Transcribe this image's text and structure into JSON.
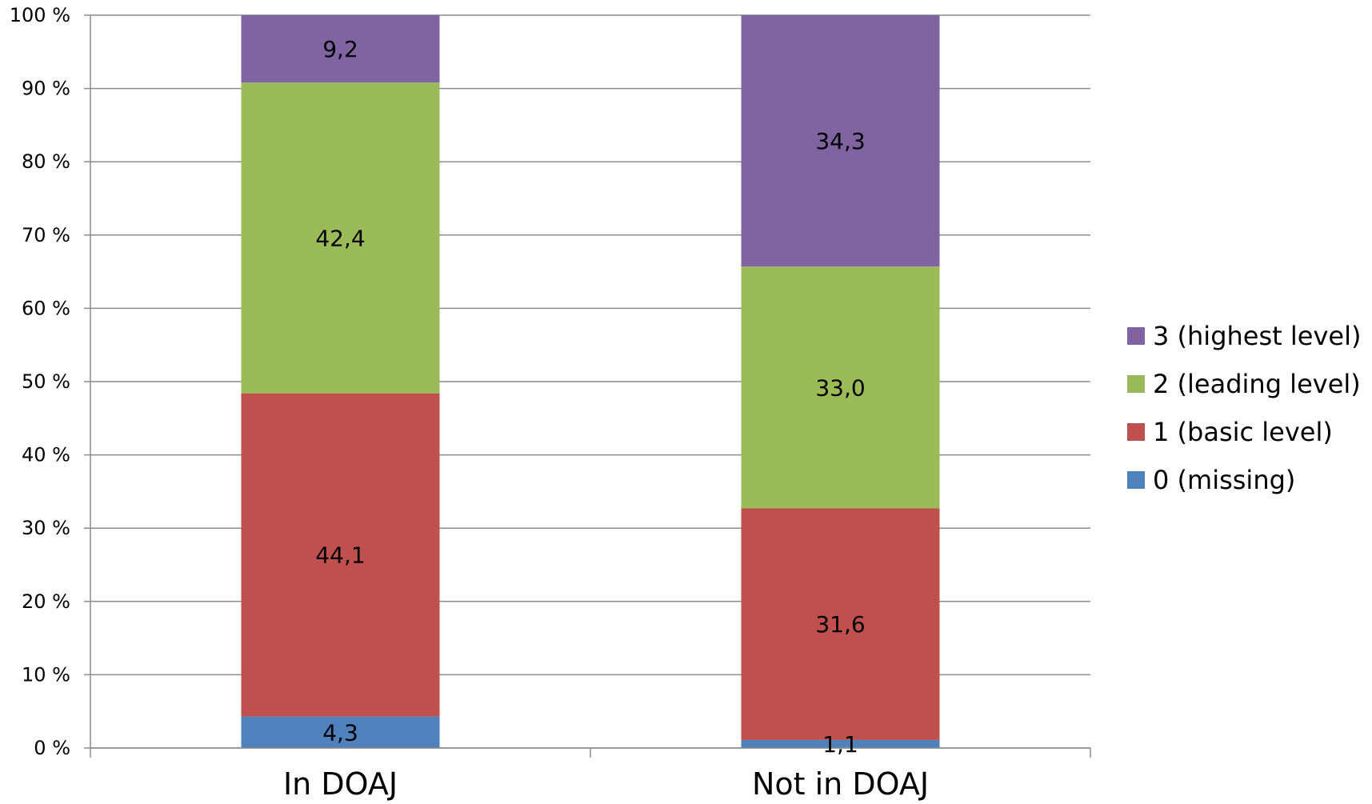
{
  "chart_data": {
    "type": "bar",
    "stacked": true,
    "categories": [
      "In DOAJ",
      "Not in DOAJ"
    ],
    "series": [
      {
        "name": "0 (missing)",
        "values": [
          4.3,
          1.1
        ],
        "labels": [
          "4,3",
          "1,1"
        ],
        "color": "#4F81BD"
      },
      {
        "name": "1 (basic level)",
        "values": [
          44.1,
          31.6
        ],
        "labels": [
          "44,1",
          "31,6"
        ],
        "color": "#C0504D"
      },
      {
        "name": "2 (leading level)",
        "values": [
          42.4,
          33.0
        ],
        "labels": [
          "42,4",
          "33,0"
        ],
        "color": "#9BBB59"
      },
      {
        "name": "3 (highest level)",
        "values": [
          9.2,
          34.3
        ],
        "labels": [
          "9,2",
          "34,3"
        ],
        "color": "#8064A2"
      }
    ],
    "yticks": [
      0,
      10,
      20,
      30,
      40,
      50,
      60,
      70,
      80,
      90,
      100
    ],
    "ytick_labels": [
      "0 %",
      "10 %",
      "20 %",
      "30 %",
      "40 %",
      "50 %",
      "60 %",
      "70 %",
      "80 %",
      "90 %",
      "100 %"
    ],
    "ylim": [
      0,
      100
    ],
    "title": "",
    "xlabel": "",
    "ylabel": "",
    "grid": true,
    "legend_position": "right",
    "legend_order": [
      3,
      2,
      1,
      0
    ]
  }
}
